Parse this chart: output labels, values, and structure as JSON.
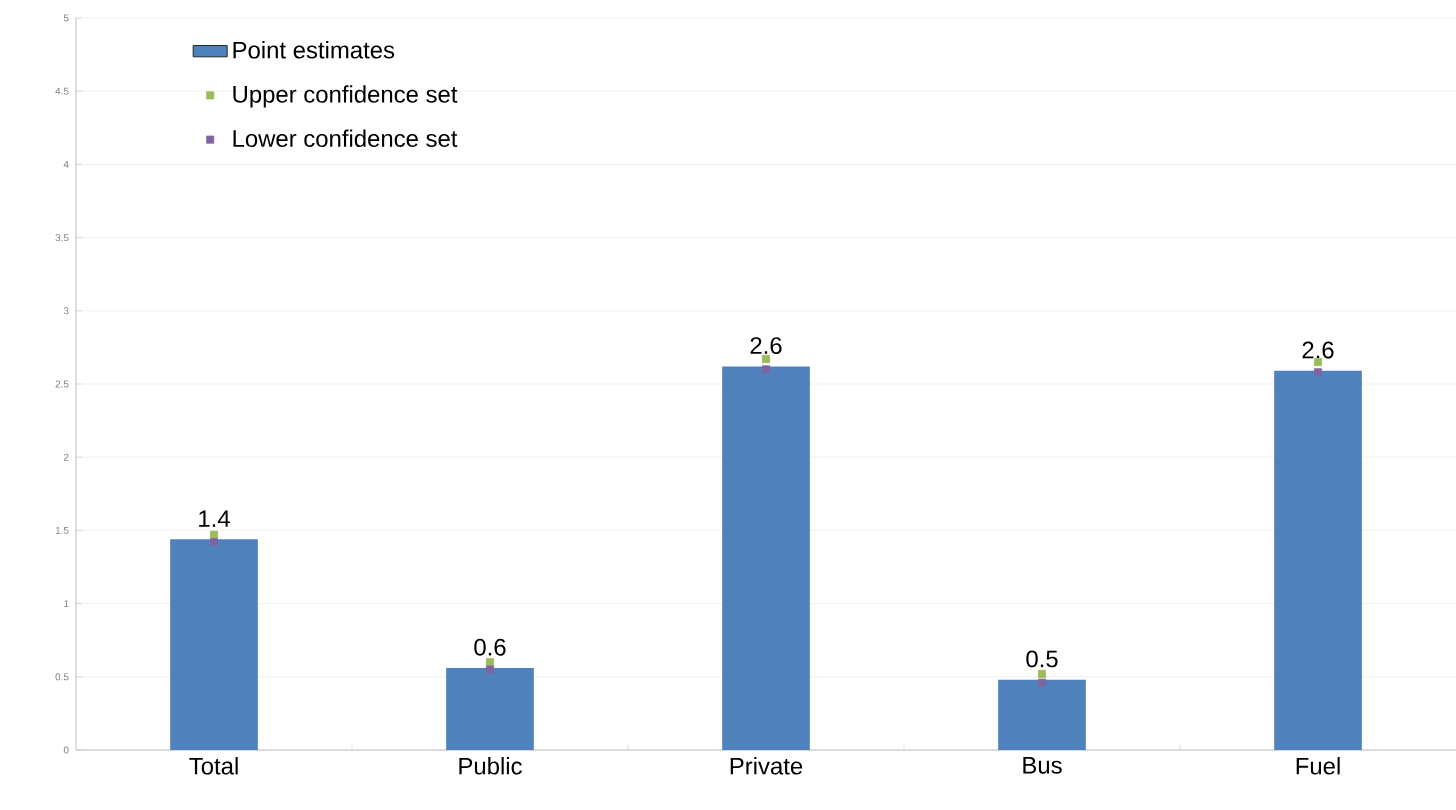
{
  "chart_data": {
    "type": "bar",
    "categories": [
      "Total",
      "Public",
      "Private",
      "Bus",
      "Fuel"
    ],
    "series": [
      {
        "name": "Point estimates",
        "color": "#4f81bd",
        "values": [
          1.44,
          0.56,
          2.62,
          0.48,
          2.59
        ],
        "value_labels": [
          "1.4",
          "0.6",
          "2.6",
          "0.5",
          "2.6"
        ]
      },
      {
        "name": "Upper confidence set",
        "type": "scatter",
        "marker": "square",
        "color": "#9bbb59",
        "x": [
          "Total",
          "Public",
          "Private",
          "Bus",
          "Fuel"
        ],
        "values": [
          1.47,
          0.6,
          2.67,
          0.52,
          2.65
        ]
      },
      {
        "name": "Lower confidence set",
        "type": "scatter",
        "marker": "square",
        "color": "#8064a2",
        "x": [
          "Total",
          "Public",
          "Private",
          "Bus",
          "Fuel"
        ],
        "values": [
          1.42,
          0.55,
          2.6,
          0.46,
          2.58
        ]
      }
    ],
    "ylim": [
      0,
      5
    ],
    "yticks": [
      0,
      0.5,
      1,
      1.5,
      2,
      2.5,
      3,
      3.5,
      4,
      4.5,
      5
    ],
    "grid": "y",
    "legend": "top left"
  }
}
